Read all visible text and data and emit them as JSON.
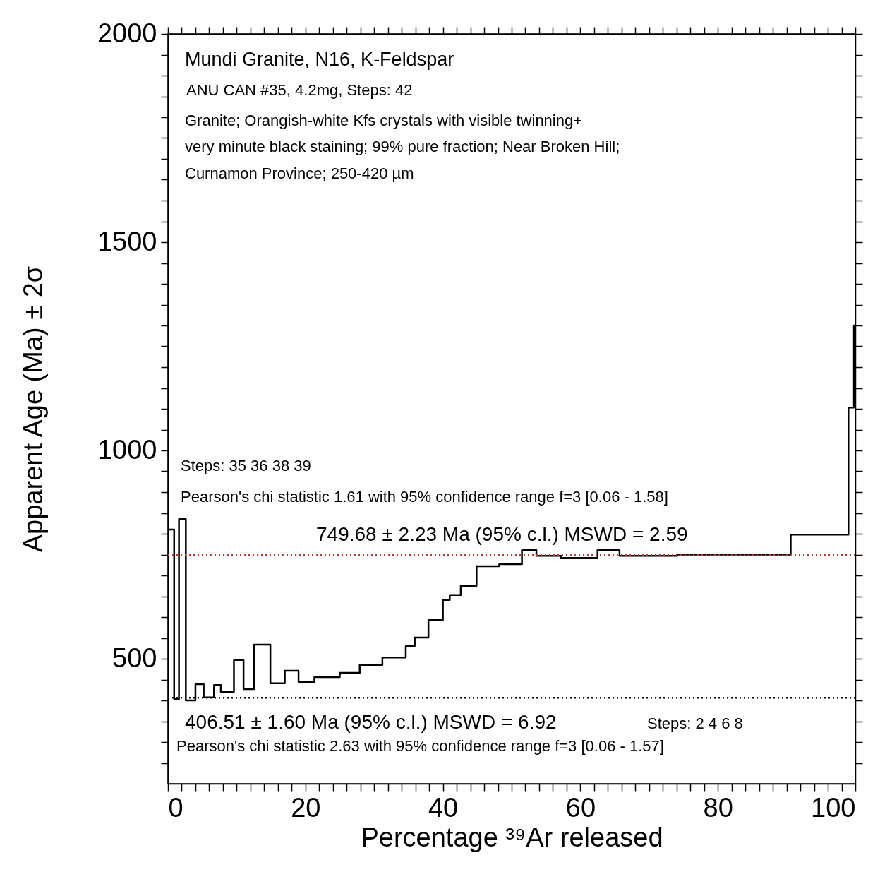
{
  "chart_data": {
    "type": "step",
    "title": "Mundi Granite, N16, K-Feldspar",
    "subtitle": "ANU CAN #35, 4.2mg, Steps: 42",
    "xlabel": "Percentage ³⁹Ar released",
    "ylabel": "Apparent Age (Ma) ± 2σ",
    "annotations": [
      "Granite; Orangish-white Kfs crystals with visible twinning+",
      " very minute black staining; 99% pure fraction; Near Broken Hill;",
      " Curnamon Province; 250-420 µm",
      "Steps:  35 36 38 39",
      "Pearson's chi statistic 1.61 with 95% confidence range f=3 [0.06 - 1.58]",
      "Steps:  2 4 6 8",
      "Pearson's chi statistic 2.63 with 95% confidence range f=3 [0.06 - 1.57]"
    ],
    "series": [
      {
        "color": "#000000",
        "x": [
          0,
          0.9,
          1.6,
          2.6,
          4.0,
          5.2,
          6.7,
          7.7,
          9.6,
          11.0,
          12.5,
          14.9,
          17.0,
          19.0,
          21.3,
          25.0,
          27.9,
          31.2,
          34.6,
          35.9,
          37.9,
          40.0,
          41.0,
          42.6,
          44.9,
          48.2,
          51.5,
          53.6,
          57.2,
          62.5,
          65.7,
          74.1,
          90.6,
          99.0,
          99.8,
          100
        ],
        "values": [
          810,
          403,
          835,
          400,
          439,
          407,
          437,
          420,
          497,
          427,
          534,
          441,
          471,
          444,
          456,
          466,
          485,
          503,
          530,
          551,
          593,
          641,
          653,
          675,
          722,
          727,
          761,
          747,
          742,
          761,
          747,
          750,
          798,
          1103,
          1300,
          1300
        ]
      }
    ],
    "xlim": [
      0,
      100
    ],
    "ylim": [
      200,
      2000
    ],
    "xticks": [
      0,
      {
        "value": 2,
        "label": null
      },
      {
        "value": 4,
        "label": null
      },
      {
        "value": 6,
        "label": null
      },
      {
        "value": 8,
        "label": null
      },
      {
        "value": 10,
        "label": null
      },
      {
        "value": 12,
        "label": null
      },
      {
        "value": 14,
        "label": null
      },
      {
        "value": 16,
        "label": null
      },
      {
        "value": 18,
        "label": null
      },
      20,
      {
        "value": 22,
        "label": null
      },
      {
        "value": 24,
        "label": null
      },
      {
        "value": 26,
        "label": null
      },
      {
        "value": 28,
        "label": null
      },
      {
        "value": 30,
        "label": null
      },
      {
        "value": 32,
        "label": null
      },
      {
        "value": 34,
        "label": null
      },
      {
        "value": 36,
        "label": null
      },
      {
        "value": 38,
        "label": null
      },
      40,
      {
        "value": 42,
        "label": null
      },
      {
        "value": 44,
        "label": null
      },
      {
        "value": 46,
        "label": null
      },
      {
        "value": 48,
        "label": null
      },
      {
        "value": 50,
        "label": null
      },
      {
        "value": 52,
        "label": null
      },
      {
        "value": 54,
        "label": null
      },
      {
        "value": 56,
        "label": null
      },
      {
        "value": 58,
        "label": null
      },
      60,
      {
        "value": 62,
        "label": null
      },
      {
        "value": 64,
        "label": null
      },
      {
        "value": 66,
        "label": null
      },
      {
        "value": 68,
        "label": null
      },
      {
        "value": 70,
        "label": null
      },
      {
        "value": 72,
        "label": null
      },
      {
        "value": 74,
        "label": null
      },
      {
        "value": 76,
        "label": null
      },
      {
        "value": 78,
        "label": null
      },
      80,
      {
        "value": 82,
        "label": null
      },
      {
        "value": 84,
        "label": null
      },
      {
        "value": 86,
        "label": null
      },
      {
        "value": 88,
        "label": null
      },
      {
        "value": 90,
        "label": null
      },
      {
        "value": 92,
        "label": null
      },
      {
        "value": 94,
        "label": null
      },
      {
        "value": 96,
        "label": null
      },
      {
        "value": 98,
        "label": null
      },
      100
    ],
    "yticks": [
      {
        "value": 250,
        "label": null
      },
      {
        "value": 300,
        "label": null
      },
      {
        "value": 350,
        "label": null
      },
      {
        "value": 400,
        "label": null
      },
      {
        "value": 450,
        "label": null
      },
      500,
      {
        "value": 550,
        "label": null
      },
      {
        "value": 600,
        "label": null
      },
      {
        "value": 650,
        "label": null
      },
      {
        "value": 700,
        "label": null
      },
      {
        "value": 750,
        "label": null
      },
      {
        "value": 800,
        "label": null
      },
      {
        "value": 850,
        "label": null
      },
      {
        "value": 900,
        "label": null
      },
      {
        "value": 950,
        "label": null
      },
      1000,
      {
        "value": 1050,
        "label": null
      },
      {
        "value": 1100,
        "label": null
      },
      {
        "value": 1150,
        "label": null
      },
      {
        "value": 1200,
        "label": null
      },
      {
        "value": 1250,
        "label": null
      },
      {
        "value": 1300,
        "label": null
      },
      {
        "value": 1350,
        "label": null
      },
      {
        "value": 1400,
        "label": null
      },
      {
        "value": 1450,
        "label": null
      },
      1500,
      {
        "value": 1550,
        "label": null
      },
      {
        "value": 1600,
        "label": null
      },
      {
        "value": 1650,
        "label": null
      },
      {
        "value": 1700,
        "label": null
      },
      {
        "value": 1750,
        "label": null
      },
      {
        "value": 1800,
        "label": null
      },
      {
        "value": 1850,
        "label": null
      },
      {
        "value": 1900,
        "label": null
      },
      {
        "value": 1950,
        "label": null
      },
      2000
    ],
    "ref_lines": [
      {
        "axis": "y",
        "value": 749.68,
        "label": "749.68 ± 2.23 Ma (95% c.l.) MSWD = 2.59",
        "color": "#c0392b",
        "line_style": "dotted"
      },
      {
        "axis": "y",
        "value": 406.51,
        "label": "406.51 ± 1.60 Ma (95% c.l.) MSWD = 6.92",
        "color": "#000000",
        "line_style": "dotted"
      }
    ],
    "grid": false,
    "marker": "none",
    "line_style": "solid"
  }
}
